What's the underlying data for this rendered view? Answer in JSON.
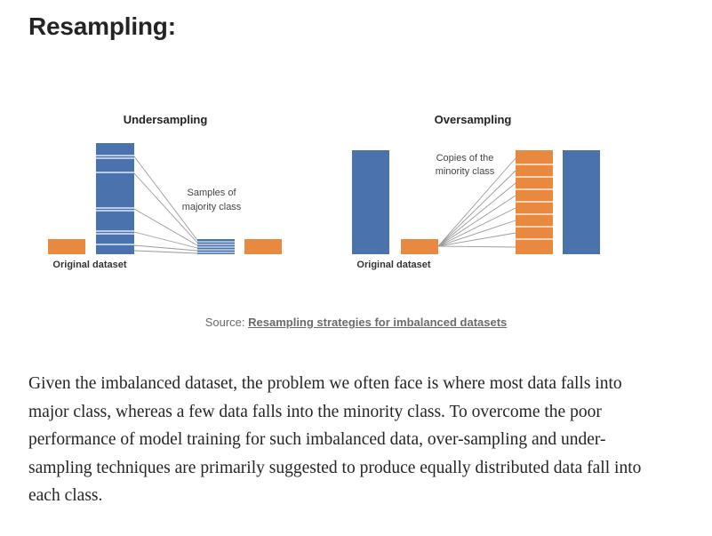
{
  "article": {
    "heading": "Resampling:",
    "figure": {
      "undersampling": {
        "title": "Undersampling",
        "note_line1": "Samples of",
        "note_line2": "majority class",
        "original_label": "Original dataset"
      },
      "oversampling": {
        "title": "Oversampling",
        "note_line1": "Copies of the",
        "note_line2": "minority class",
        "original_label": "Original dataset"
      },
      "colors": {
        "majority": "#4a73ae",
        "minority": "#e8893f",
        "lines": "#9a9a9a"
      }
    },
    "caption": {
      "prefix": "Source: ",
      "link_text": "Resampling strategies for imbalanced datasets"
    },
    "paragraph": "Given the imbalanced dataset, the problem we often face is where most data falls into major class, whereas a few data falls into the minority class. To overcome the poor performance of model training for such imbalanced data, over-sampling and under-sampling techniques are primarily suggested to produce equally distributed data fall into each class."
  }
}
